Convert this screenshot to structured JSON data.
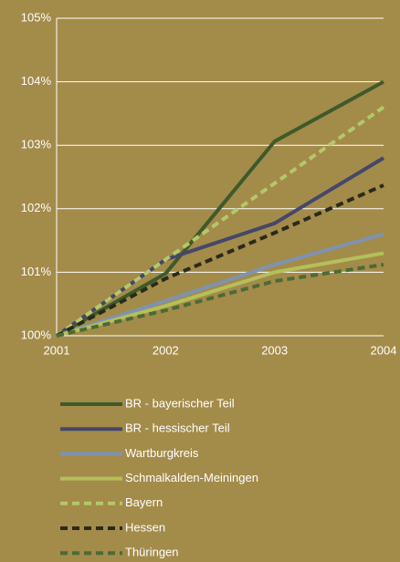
{
  "chart_data": {
    "type": "line",
    "categories": [
      "2001",
      "2002",
      "2003",
      "2004"
    ],
    "ylim": [
      100,
      105
    ],
    "yticks": [
      {
        "value": 100,
        "label": "100%"
      },
      {
        "value": 101,
        "label": "101%"
      },
      {
        "value": 102,
        "label": "102%"
      },
      {
        "value": 103,
        "label": "103%"
      },
      {
        "value": 104,
        "label": "104%"
      },
      {
        "value": 105,
        "label": "105%"
      }
    ],
    "grid": true,
    "series": [
      {
        "name": "BR - bayerischer Teil",
        "color": "#3f5a2a",
        "dash": false,
        "values": [
          100,
          100.98,
          103.06,
          104.0
        ]
      },
      {
        "name": "BR - hessischer Teil",
        "color": "#45476a",
        "dash": false,
        "values": [
          100,
          101.2,
          101.77,
          102.8
        ]
      },
      {
        "name": "Wartburgkreis",
        "color": "#7f93b0",
        "dash": false,
        "values": [
          100,
          100.55,
          101.12,
          101.6
        ]
      },
      {
        "name": "Schmalkalden-Meiningen",
        "color": "#b4c05a",
        "dash": false,
        "values": [
          100,
          100.47,
          101.0,
          101.3
        ]
      },
      {
        "name": "Bayern",
        "color": "#b4c86a",
        "dash": true,
        "values": [
          100,
          101.2,
          102.4,
          103.6
        ]
      },
      {
        "name": "Hessen",
        "color": "#2a2a1a",
        "dash": true,
        "values": [
          100,
          100.9,
          101.62,
          102.37
        ]
      },
      {
        "name": "Thüringen",
        "color": "#4c6a35",
        "dash": true,
        "values": [
          100,
          100.4,
          100.86,
          101.12
        ]
      }
    ]
  }
}
